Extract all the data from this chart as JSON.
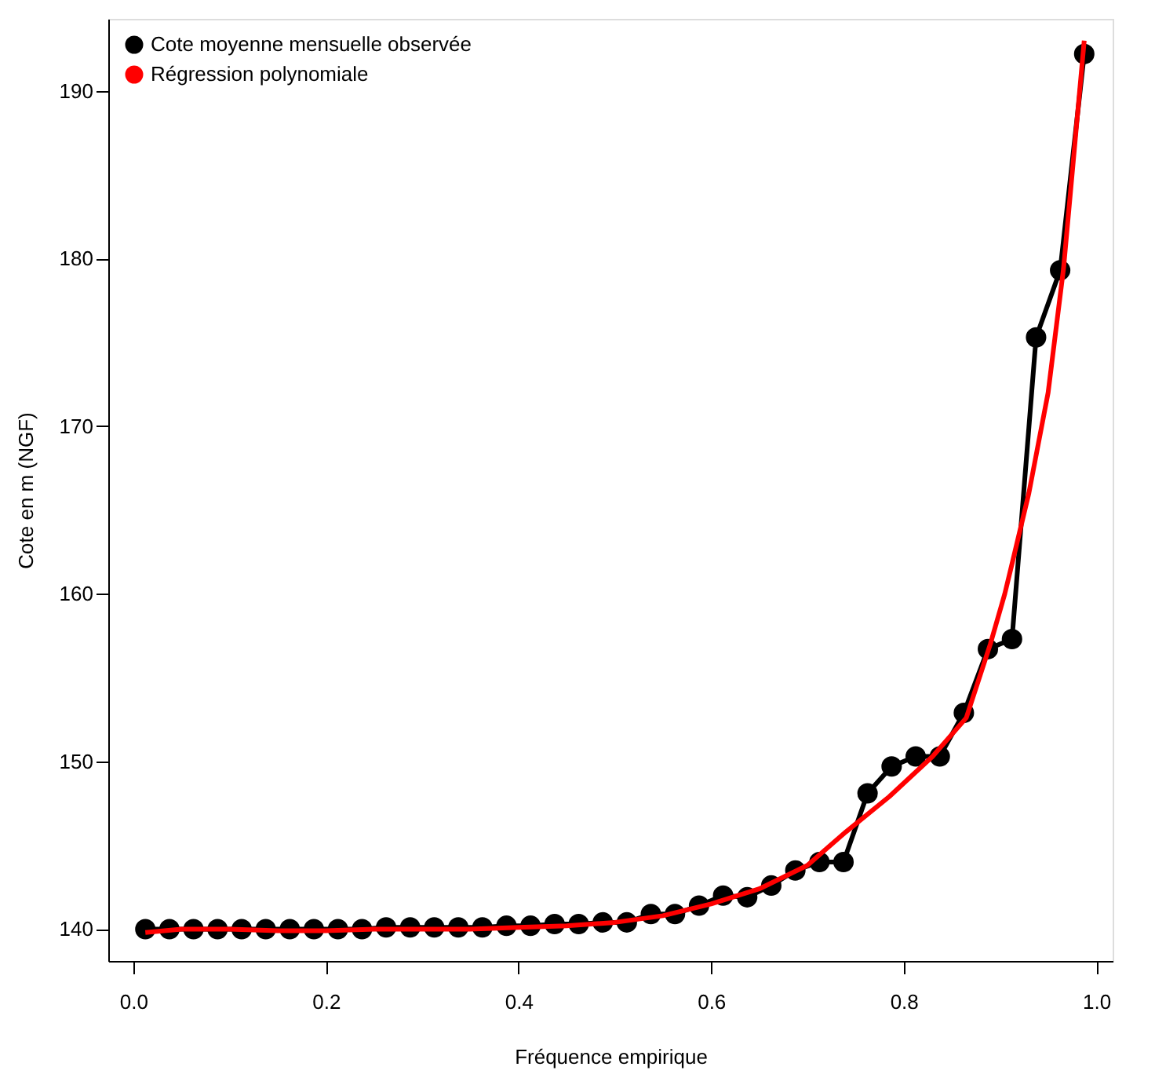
{
  "chart_data": {
    "type": "line",
    "xlabel": "Fréquence empirique",
    "ylabel": "Cote en m (NGF)",
    "xlim": [
      -0.026,
      1.017
    ],
    "ylim": [
      138.1,
      194.3
    ],
    "xticks": [
      {
        "value": 0,
        "label": "0.0"
      },
      0.2,
      0.4,
      0.6,
      0.8,
      {
        "value": 1,
        "label": "1.0"
      }
    ],
    "yticks": [
      140,
      150,
      160,
      170,
      180,
      190
    ],
    "grid": false,
    "legend": "top left",
    "series": [
      {
        "name": "Cote moyenne mensuelle observée",
        "color": "#000000",
        "marker": "circle",
        "x": [
          0.0125,
          0.0375,
          0.0625,
          0.0875,
          0.1125,
          0.1375,
          0.1625,
          0.1875,
          0.2125,
          0.2375,
          0.2625,
          0.2875,
          0.3125,
          0.3375,
          0.3625,
          0.3875,
          0.4125,
          0.4375,
          0.4625,
          0.4875,
          0.5125,
          0.5375,
          0.5625,
          0.5875,
          0.6125,
          0.6375,
          0.6625,
          0.6875,
          0.7125,
          0.7375,
          0.7625,
          0.7875,
          0.8125,
          0.8375,
          0.8625,
          0.8875,
          0.9125,
          0.9375,
          0.9625,
          0.9875
        ],
        "values": [
          140.0,
          140.0,
          140.0,
          140.0,
          140.0,
          140.0,
          140.0,
          140.0,
          140.0,
          140.0,
          140.1,
          140.1,
          140.1,
          140.1,
          140.1,
          140.2,
          140.2,
          140.3,
          140.3,
          140.4,
          140.4,
          140.9,
          140.9,
          141.4,
          142.0,
          141.9,
          142.6,
          143.5,
          144.0,
          144.0,
          148.1,
          149.7,
          150.3,
          150.3,
          152.9,
          156.7,
          157.3,
          175.3,
          179.3,
          192.2
        ]
      },
      {
        "name": "Régression polynomiale",
        "color": "#ff0000",
        "marker": "none",
        "x": [
          0.0125,
          0.05,
          0.1,
          0.15,
          0.2,
          0.25,
          0.3,
          0.35,
          0.4,
          0.45,
          0.5,
          0.55,
          0.6,
          0.65,
          0.7,
          0.74,
          0.785,
          0.83,
          0.865,
          0.89,
          0.905,
          0.913,
          0.93,
          0.95,
          0.966,
          0.9875
        ],
        "values": [
          139.8,
          140.0,
          140.0,
          139.9,
          139.9,
          140.0,
          140.0,
          140.0,
          140.1,
          140.2,
          140.4,
          140.8,
          141.5,
          142.4,
          143.8,
          145.8,
          147.9,
          150.3,
          152.6,
          157.0,
          160.0,
          161.9,
          166,
          172,
          179.4,
          193.0
        ]
      }
    ]
  }
}
